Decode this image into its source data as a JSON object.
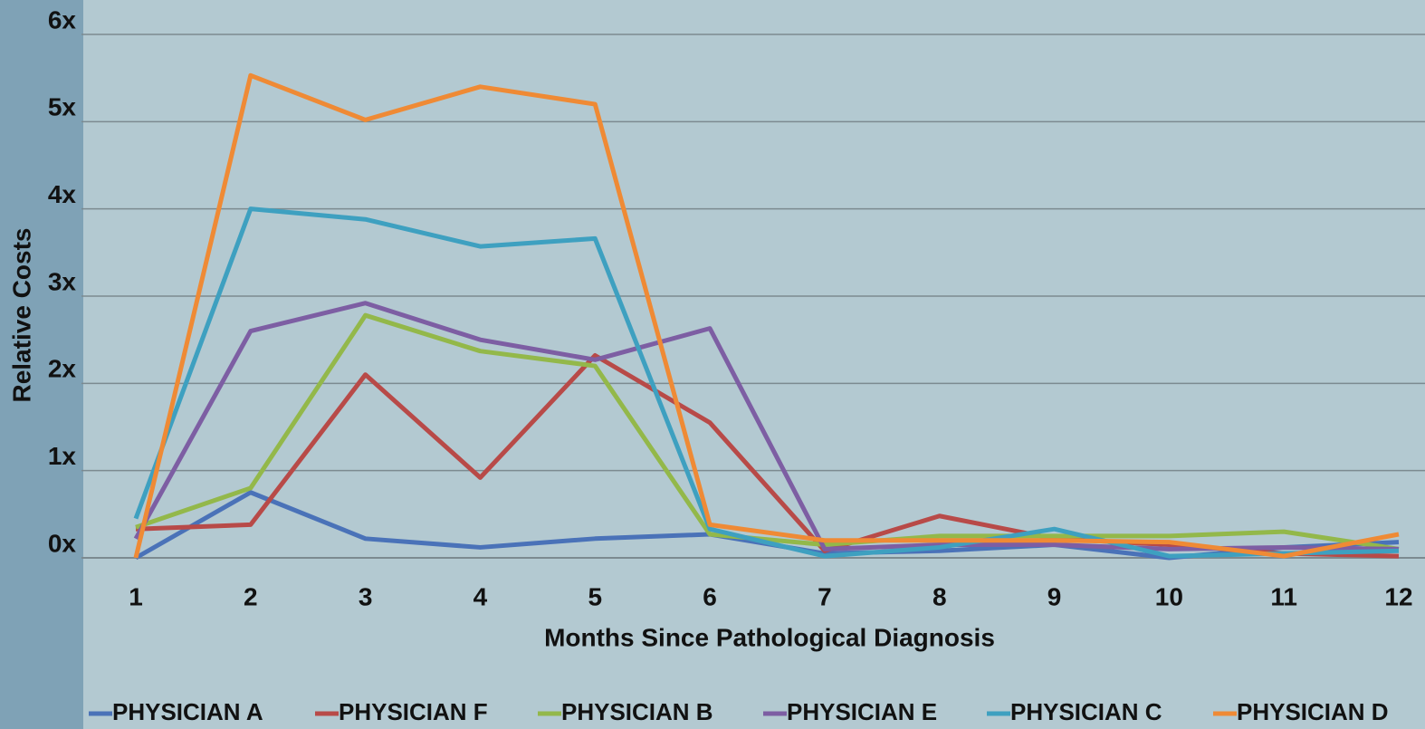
{
  "chart_data": {
    "type": "line",
    "x_label": "Months Since Pathological Diagnosis",
    "y_label": "Relative Costs",
    "categories": [
      1,
      2,
      3,
      4,
      5,
      6,
      7,
      8,
      9,
      10,
      11,
      12
    ],
    "ylim": [
      0,
      6
    ],
    "yticks": [
      {
        "value": 0,
        "label": "0x"
      },
      {
        "value": 1,
        "label": "1x"
      },
      {
        "value": 2,
        "label": "2x"
      },
      {
        "value": 3,
        "label": "3x"
      },
      {
        "value": 4,
        "label": "4x"
      },
      {
        "value": 5,
        "label": "5x"
      },
      {
        "value": 6,
        "label": "6x"
      }
    ],
    "grid": true,
    "legend": "bottom",
    "series": [
      {
        "name": "PHYSICIAN A",
        "color": "#4a72b8",
        "values": [
          0.0,
          0.75,
          0.22,
          0.12,
          0.22,
          0.27,
          0.05,
          0.08,
          0.15,
          0.0,
          0.12,
          0.18
        ]
      },
      {
        "name": "PHYSICIAN F",
        "color": "#b84a48",
        "values": [
          0.33,
          0.38,
          2.1,
          0.92,
          2.32,
          1.55,
          0.08,
          0.48,
          0.22,
          0.15,
          0.05,
          0.02
        ]
      },
      {
        "name": "PHYSICIAN B",
        "color": "#93b84a",
        "values": [
          0.35,
          0.8,
          2.78,
          2.37,
          2.2,
          0.27,
          0.15,
          0.25,
          0.25,
          0.25,
          0.3,
          0.1
        ]
      },
      {
        "name": "PHYSICIAN E",
        "color": "#7d5ea3",
        "values": [
          0.22,
          2.6,
          2.92,
          2.5,
          2.27,
          2.63,
          0.1,
          0.15,
          0.15,
          0.1,
          0.12,
          0.1
        ]
      },
      {
        "name": "PHYSICIAN C",
        "color": "#3ea0c0",
        "values": [
          0.45,
          4.0,
          3.88,
          3.57,
          3.66,
          0.33,
          0.02,
          0.12,
          0.33,
          0.02,
          0.05,
          0.08
        ]
      },
      {
        "name": "PHYSICIAN D",
        "color": "#ef8a35",
        "values": [
          0.0,
          5.53,
          5.02,
          5.4,
          5.2,
          0.38,
          0.2,
          0.2,
          0.2,
          0.18,
          0.02,
          0.27
        ]
      }
    ]
  }
}
